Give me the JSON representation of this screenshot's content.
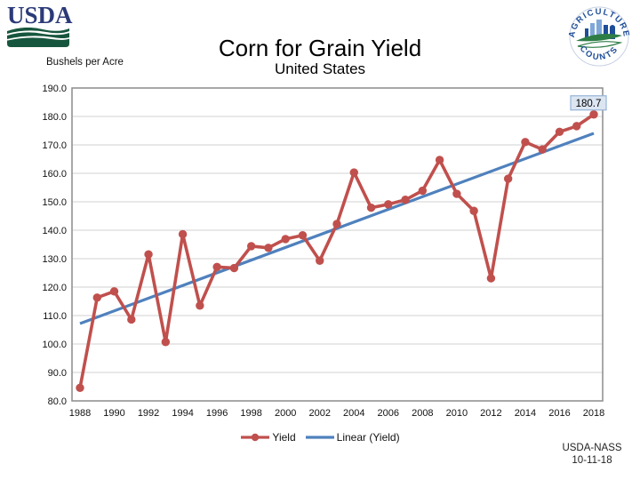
{
  "branding": {
    "usda_logo_text": "USDA",
    "nass_logo_top": "AGRICULTURE",
    "nass_logo_bottom": "COUNTS"
  },
  "header": {
    "title": "Corn for Grain Yield",
    "subtitle": "United States",
    "units_label": "Bushels per Acre"
  },
  "chart_data": {
    "type": "line",
    "title": "Corn for Grain Yield",
    "subtitle": "United States",
    "ylabel": "Bushels per Acre",
    "ylim": [
      80.0,
      190.0
    ],
    "ytick_step": 10,
    "grid": true,
    "legend_position": "bottom",
    "x": [
      1988,
      1989,
      1990,
      1991,
      1992,
      1993,
      1994,
      1995,
      1996,
      1997,
      1998,
      1999,
      2000,
      2001,
      2002,
      2003,
      2004,
      2005,
      2006,
      2007,
      2008,
      2009,
      2010,
      2011,
      2012,
      2013,
      2014,
      2015,
      2016,
      2017,
      2018
    ],
    "xtick_every": 2,
    "series": [
      {
        "name": "Yield",
        "type": "line_markers",
        "color": "#C0504D",
        "values": [
          84.6,
          116.3,
          118.5,
          108.6,
          131.5,
          100.7,
          138.6,
          113.5,
          127.1,
          126.7,
          134.4,
          133.8,
          136.9,
          138.2,
          129.3,
          142.2,
          160.3,
          147.9,
          149.1,
          150.7,
          153.9,
          164.7,
          152.8,
          146.8,
          123.1,
          158.1,
          171.0,
          168.4,
          174.6,
          176.6,
          180.7
        ]
      },
      {
        "name": "Linear (Yield)",
        "type": "linear_trend",
        "color": "#4F81BD"
      }
    ],
    "annotation": {
      "label": "180.7",
      "x": 2018,
      "box_fill": "#DCE6F2",
      "box_border": "#95B3D7"
    }
  },
  "legend": {
    "items": [
      {
        "label": "Yield",
        "color": "#C0504D",
        "marker": "circle"
      },
      {
        "label": "Linear (Yield)",
        "color": "#4F81BD",
        "marker": "none"
      }
    ]
  },
  "footer": {
    "source": "USDA-NASS",
    "date": "10-11-18"
  },
  "colors": {
    "grid": "#D2D2D2",
    "plot_border": "#8C8C8C",
    "axis_text": "#111111",
    "usda_blue": "#2B3A78",
    "usda_green": "#17563E",
    "nass_blue": "#1F4E99",
    "nass_green": "#2E7D46",
    "nass_light_blue": "#7FA8D9"
  }
}
